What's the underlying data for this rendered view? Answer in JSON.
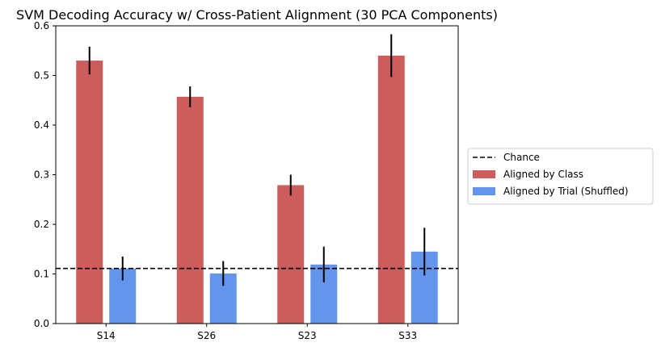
{
  "chart_data": {
    "type": "bar",
    "title": "SVM Decoding Accuracy w/ Cross-Patient Alignment (30 PCA Components)",
    "xlabel": "",
    "ylabel": "",
    "categories": [
      "S14",
      "S26",
      "S23",
      "S33"
    ],
    "ylim": [
      0,
      0.6
    ],
    "yticks": [
      0.0,
      0.1,
      0.2,
      0.3,
      0.4,
      0.5,
      0.6
    ],
    "ytick_labels": [
      "0.0",
      "0.1",
      "0.2",
      "0.3",
      "0.4",
      "0.5",
      "0.6"
    ],
    "grid": false,
    "legend_placement": "outside-right",
    "chance_level": 0.111,
    "chance_label": "Chance",
    "series": [
      {
        "name": "Aligned by Class",
        "color": "#cd5c5c",
        "values": [
          0.53,
          0.457,
          0.279,
          0.54
        ],
        "errors": [
          0.028,
          0.021,
          0.021,
          0.043
        ]
      },
      {
        "name": "Aligned by Trial (Shuffled)",
        "color": "#6495ed",
        "values": [
          0.111,
          0.101,
          0.119,
          0.145
        ],
        "errors": [
          0.024,
          0.025,
          0.036,
          0.048
        ]
      }
    ]
  }
}
